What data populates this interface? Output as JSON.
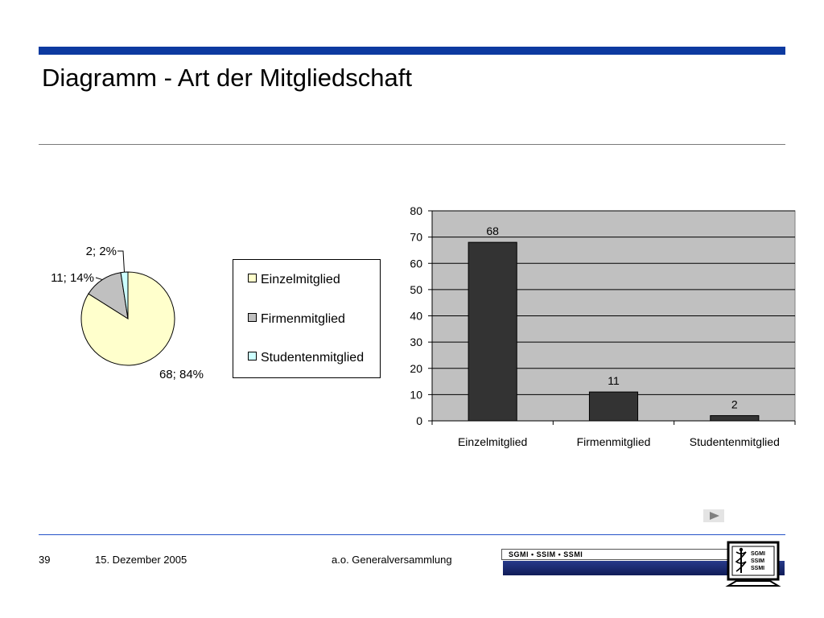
{
  "slide": {
    "title": "Diagramm - Art der Mitgliedschaft"
  },
  "footer": {
    "page_number": "39",
    "date": "15. Dezember 2005",
    "event": "a.o. Generalversammlung",
    "logo_band_text": "SGMI • SSIM • SSMI",
    "logo_monitor_lines": [
      "SGMI",
      "SSIM",
      "SSMI"
    ]
  },
  "colors": {
    "einzelmitglied": "#ffffcc",
    "firmenmitglied": "#c0c0c0",
    "studentenmitglied": "#ccffff",
    "bar_fill": "#333333",
    "plot_background": "#c0c0c0",
    "accent_blue": "#0d3aa0"
  },
  "legend": {
    "items": [
      "Einzelmitglied",
      "Firmenmitglied",
      "Studentenmitglied"
    ]
  },
  "chart_data": [
    {
      "type": "pie",
      "categories": [
        "Einzelmitglied",
        "Firmenmitglied",
        "Studentenmitglied"
      ],
      "values": [
        68,
        11,
        2
      ],
      "data_labels": [
        "68; 84%",
        "11; 14%",
        "2; 2%"
      ],
      "legend": "right"
    },
    {
      "type": "bar",
      "categories": [
        "Einzelmitglied",
        "Firmenmitglied",
        "Studentenmitglied"
      ],
      "values": [
        68,
        11,
        2
      ],
      "data_labels": [
        "68",
        "11",
        "2"
      ],
      "ylim": [
        0,
        80
      ],
      "yticks": [
        0,
        10,
        20,
        30,
        40,
        50,
        60,
        70,
        80
      ],
      "grid": true,
      "xlabel": "",
      "ylabel": ""
    }
  ]
}
